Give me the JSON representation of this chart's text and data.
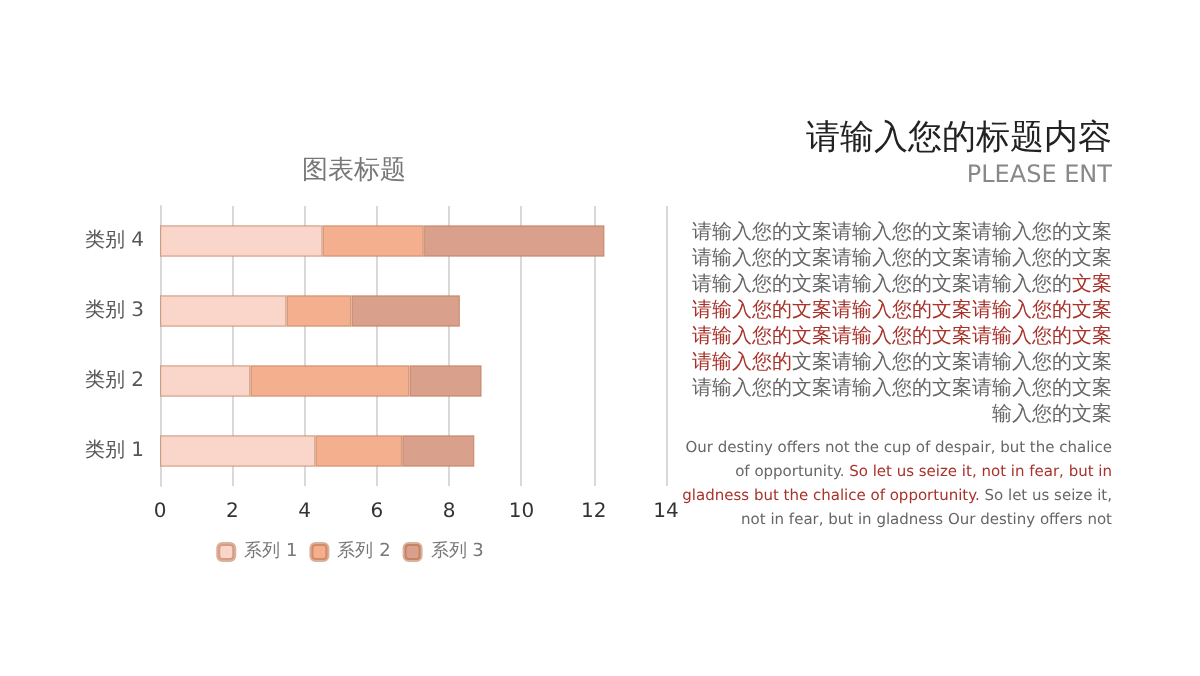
{
  "chart_data": {
    "type": "bar",
    "orientation": "horizontal",
    "stacked": true,
    "title": "图表标题",
    "categories": [
      "类别 4",
      "类别 3",
      "类别 2",
      "类别 1"
    ],
    "series": [
      {
        "name": "系列 1",
        "color": "#f9d6c9",
        "values": [
          4.5,
          3.5,
          2.5,
          4.3
        ]
      },
      {
        "name": "系列 2",
        "color": "#f4b08e",
        "values": [
          2.8,
          1.8,
          4.4,
          2.4
        ]
      },
      {
        "name": "系列 3",
        "color": "#d9a08b",
        "values": [
          5.0,
          3.0,
          2.0,
          2.0
        ]
      }
    ],
    "xlim": [
      0,
      14
    ],
    "xticks": [
      0,
      2,
      4,
      6,
      8,
      10,
      12,
      14
    ],
    "grid": "x",
    "legend": "bottom",
    "annotations": [
      "请输入您的标题内容",
      "PLEASE ENT",
      "请输入您的文案请输入您的文案请输入您的文案请输入您的文案请输入您的文案请输入您的文案请输入您的文案请输入您的文案请输入您的",
      "文案请输入您的文案请输入您的文案请输入您的文案请输入您的文案请输入您的文案请输入您的文案请输入您的",
      "文案请输入您的文案请输入您的文案请输入您的文案请输入您的文案请输入您的文案输入您的文案",
      "Our destiny offers not the cup of despair, but the chalice of opportunity.",
      "So let us seize it, not in fear, but in gladness but the chalice of opportunity.",
      "So let us seize it, not in fear, but in gladness Our destiny offers not"
    ]
  }
}
